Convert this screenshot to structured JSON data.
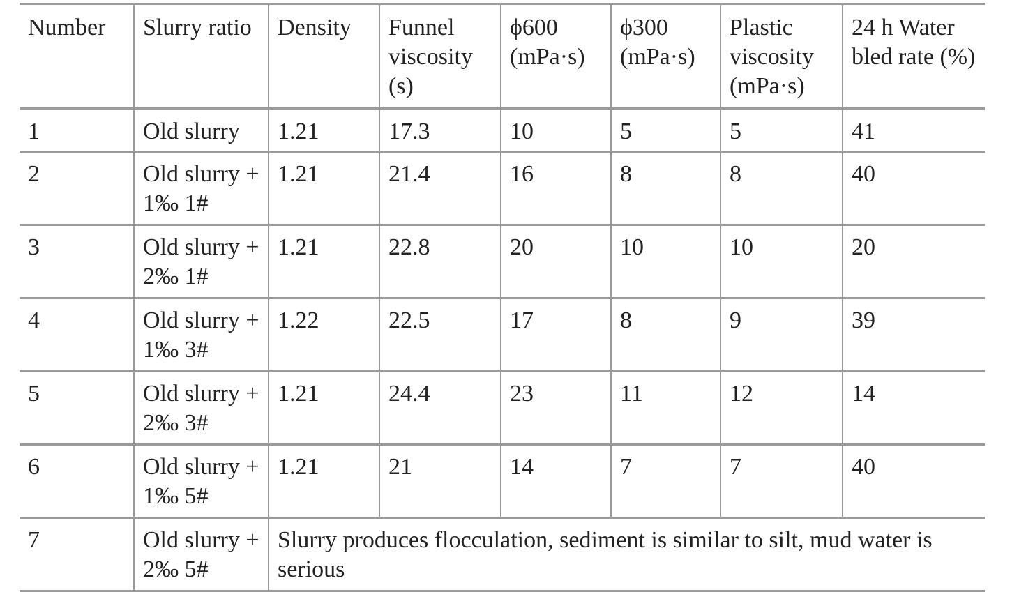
{
  "table": {
    "headers": [
      "Number",
      "Slurry ratio",
      "Density",
      "Funnel viscosity (s)",
      "ϕ600 (mPa·s)",
      "ϕ300 (mPa·s)",
      "Plastic viscosity (mPa·s)",
      "24 h Water bled rate (%)"
    ],
    "rows": [
      [
        "1",
        "Old slurry",
        "1.21",
        "17.3",
        "10",
        "5",
        "5",
        "41"
      ],
      [
        "2",
        "Old slurry + 1‰ 1#",
        "1.21",
        "21.4",
        "16",
        "8",
        "8",
        "40"
      ],
      [
        "3",
        "Old slurry + 2‰ 1#",
        "1.21",
        "22.8",
        "20",
        "10",
        "10",
        "20"
      ],
      [
        "4",
        "Old slurry + 1‰ 3#",
        "1.22",
        "22.5",
        "17",
        "8",
        "9",
        "39"
      ],
      [
        "5",
        "Old slurry + 2‰ 3#",
        "1.21",
        "24.4",
        "23",
        "11",
        "12",
        "14"
      ],
      [
        "6",
        "Old slurry + 1‰ 5#",
        "1.21",
        "21",
        "14",
        "7",
        "7",
        "40"
      ]
    ],
    "last_row": {
      "number": "7",
      "slurry_ratio": "Old slurry + 2‰ 5#",
      "note": "Slurry produces flocculation, sediment is similar to silt, mud water is serious"
    }
  }
}
